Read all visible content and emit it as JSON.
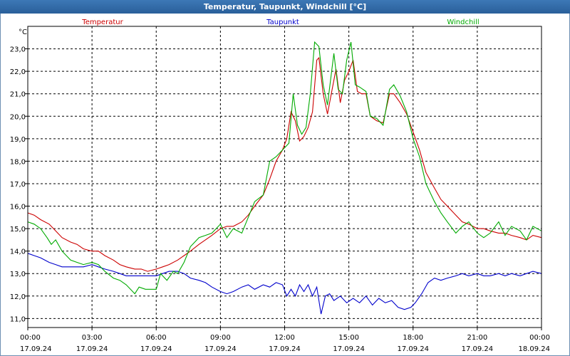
{
  "chart_data": {
    "type": "line",
    "title": "Temperatur, Taupunkt, Windchill [°C]",
    "ylabel": "°C",
    "ylim": [
      10.6,
      24.0
    ],
    "y_ticks": [
      "11,0",
      "12,0",
      "13,0",
      "14,0",
      "15,0",
      "16,0",
      "17,0",
      "18,0",
      "19,0",
      "20,0",
      "21,0",
      "22,0",
      "23,0"
    ],
    "y_tick_values": [
      11,
      12,
      13,
      14,
      15,
      16,
      17,
      18,
      19,
      20,
      21,
      22,
      23
    ],
    "xlim_hours": [
      0,
      24
    ],
    "x_ticks": [
      {
        "hour": 0,
        "time": "00:00",
        "date": "17.09.24"
      },
      {
        "hour": 3,
        "time": "03:00",
        "date": "17.09.24"
      },
      {
        "hour": 6,
        "time": "06:00",
        "date": "17.09.24"
      },
      {
        "hour": 9,
        "time": "09:00",
        "date": "17.09.24"
      },
      {
        "hour": 12,
        "time": "12:00",
        "date": "17.09.24"
      },
      {
        "hour": 15,
        "time": "15:00",
        "date": "17.09.24"
      },
      {
        "hour": 18,
        "time": "18:00",
        "date": "17.09.24"
      },
      {
        "hour": 21,
        "time": "21:00",
        "date": "17.09.24"
      },
      {
        "hour": 24,
        "time": "00:00",
        "date": "18.09.24"
      }
    ],
    "grid": true,
    "series": [
      {
        "name": "Temperatur",
        "color": "#cc0000",
        "points": [
          [
            0,
            15.7
          ],
          [
            0.3,
            15.6
          ],
          [
            0.6,
            15.4
          ],
          [
            1,
            15.2
          ],
          [
            1.3,
            14.9
          ],
          [
            1.6,
            14.6
          ],
          [
            2,
            14.4
          ],
          [
            2.3,
            14.3
          ],
          [
            2.6,
            14.1
          ],
          [
            3,
            14.0
          ],
          [
            3.3,
            14.0
          ],
          [
            3.6,
            13.8
          ],
          [
            4,
            13.6
          ],
          [
            4.3,
            13.4
          ],
          [
            4.6,
            13.3
          ],
          [
            5,
            13.2
          ],
          [
            5.3,
            13.2
          ],
          [
            5.6,
            13.1
          ],
          [
            6,
            13.2
          ],
          [
            6.3,
            13.3
          ],
          [
            6.6,
            13.4
          ],
          [
            7,
            13.6
          ],
          [
            7.3,
            13.8
          ],
          [
            7.6,
            14.0
          ],
          [
            8,
            14.3
          ],
          [
            8.3,
            14.5
          ],
          [
            8.6,
            14.7
          ],
          [
            9,
            15.0
          ],
          [
            9.3,
            15.1
          ],
          [
            9.6,
            15.1
          ],
          [
            10,
            15.3
          ],
          [
            10.3,
            15.6
          ],
          [
            10.6,
            16.0
          ],
          [
            11,
            16.5
          ],
          [
            11.3,
            17.2
          ],
          [
            11.6,
            18.0
          ],
          [
            11.9,
            18.5
          ],
          [
            12.1,
            19.0
          ],
          [
            12.3,
            20.2
          ],
          [
            12.5,
            19.8
          ],
          [
            12.7,
            18.9
          ],
          [
            12.9,
            19.1
          ],
          [
            13.1,
            19.5
          ],
          [
            13.3,
            20.2
          ],
          [
            13.5,
            22.5
          ],
          [
            13.6,
            22.6
          ],
          [
            13.8,
            21.0
          ],
          [
            14.0,
            20.1
          ],
          [
            14.2,
            21.1
          ],
          [
            14.4,
            22.1
          ],
          [
            14.6,
            20.6
          ],
          [
            14.8,
            21.6
          ],
          [
            15.0,
            22.0
          ],
          [
            15.2,
            22.5
          ],
          [
            15.4,
            21.1
          ],
          [
            15.6,
            21.0
          ],
          [
            15.8,
            21.0
          ],
          [
            16,
            20.0
          ],
          [
            16.3,
            19.8
          ],
          [
            16.6,
            19.7
          ],
          [
            16.9,
            21.0
          ],
          [
            17.1,
            21.0
          ],
          [
            17.4,
            20.6
          ],
          [
            17.7,
            20.1
          ],
          [
            18,
            19.3
          ],
          [
            18.3,
            18.5
          ],
          [
            18.6,
            17.5
          ],
          [
            19,
            16.8
          ],
          [
            19.3,
            16.3
          ],
          [
            19.6,
            16.0
          ],
          [
            20,
            15.6
          ],
          [
            20.3,
            15.3
          ],
          [
            20.6,
            15.2
          ],
          [
            21,
            15.0
          ],
          [
            21.3,
            15.0
          ],
          [
            21.6,
            14.9
          ],
          [
            22,
            14.8
          ],
          [
            22.3,
            14.8
          ],
          [
            22.6,
            14.7
          ],
          [
            23,
            14.6
          ],
          [
            23.3,
            14.5
          ],
          [
            23.6,
            14.7
          ],
          [
            24,
            14.6
          ]
        ]
      },
      {
        "name": "Taupunkt",
        "color": "#0000cc",
        "points": [
          [
            0,
            13.9
          ],
          [
            0.3,
            13.8
          ],
          [
            0.6,
            13.7
          ],
          [
            1,
            13.5
          ],
          [
            1.3,
            13.4
          ],
          [
            1.6,
            13.3
          ],
          [
            2,
            13.3
          ],
          [
            2.3,
            13.3
          ],
          [
            2.6,
            13.3
          ],
          [
            3,
            13.4
          ],
          [
            3.3,
            13.3
          ],
          [
            3.6,
            13.2
          ],
          [
            4,
            13.1
          ],
          [
            4.3,
            13.0
          ],
          [
            4.6,
            12.9
          ],
          [
            5,
            12.9
          ],
          [
            5.3,
            12.9
          ],
          [
            5.6,
            12.9
          ],
          [
            6,
            12.9
          ],
          [
            6.3,
            13.0
          ],
          [
            6.6,
            13.1
          ],
          [
            7,
            13.1
          ],
          [
            7.3,
            13.0
          ],
          [
            7.6,
            12.8
          ],
          [
            8,
            12.7
          ],
          [
            8.3,
            12.6
          ],
          [
            8.6,
            12.4
          ],
          [
            9,
            12.2
          ],
          [
            9.3,
            12.1
          ],
          [
            9.6,
            12.2
          ],
          [
            10,
            12.4
          ],
          [
            10.3,
            12.5
          ],
          [
            10.6,
            12.3
          ],
          [
            11,
            12.5
          ],
          [
            11.3,
            12.4
          ],
          [
            11.6,
            12.6
          ],
          [
            11.9,
            12.5
          ],
          [
            12.1,
            12.0
          ],
          [
            12.3,
            12.3
          ],
          [
            12.5,
            12.0
          ],
          [
            12.7,
            12.5
          ],
          [
            12.9,
            12.2
          ],
          [
            13.1,
            12.5
          ],
          [
            13.3,
            12.0
          ],
          [
            13.5,
            12.4
          ],
          [
            13.7,
            11.2
          ],
          [
            13.9,
            12.0
          ],
          [
            14.1,
            12.1
          ],
          [
            14.3,
            11.8
          ],
          [
            14.6,
            12.0
          ],
          [
            14.9,
            11.7
          ],
          [
            15.2,
            11.9
          ],
          [
            15.5,
            11.7
          ],
          [
            15.8,
            12.0
          ],
          [
            16.1,
            11.6
          ],
          [
            16.4,
            11.9
          ],
          [
            16.7,
            11.7
          ],
          [
            17,
            11.8
          ],
          [
            17.3,
            11.5
          ],
          [
            17.6,
            11.4
          ],
          [
            17.9,
            11.5
          ],
          [
            18.1,
            11.7
          ],
          [
            18.4,
            12.1
          ],
          [
            18.7,
            12.6
          ],
          [
            19,
            12.8
          ],
          [
            19.3,
            12.7
          ],
          [
            19.6,
            12.8
          ],
          [
            20,
            12.9
          ],
          [
            20.3,
            13.0
          ],
          [
            20.6,
            12.9
          ],
          [
            21,
            13.0
          ],
          [
            21.3,
            12.9
          ],
          [
            21.6,
            12.9
          ],
          [
            22,
            13.0
          ],
          [
            22.3,
            12.9
          ],
          [
            22.6,
            13.0
          ],
          [
            23,
            12.9
          ],
          [
            23.3,
            13.0
          ],
          [
            23.6,
            13.1
          ],
          [
            24,
            13.0
          ]
        ]
      },
      {
        "name": "Windchill",
        "color": "#00aa00",
        "points": [
          [
            0,
            15.3
          ],
          [
            0.3,
            15.2
          ],
          [
            0.6,
            15.0
          ],
          [
            0.9,
            14.6
          ],
          [
            1.1,
            14.3
          ],
          [
            1.3,
            14.5
          ],
          [
            1.6,
            14.0
          ],
          [
            2,
            13.6
          ],
          [
            2.3,
            13.5
          ],
          [
            2.6,
            13.4
          ],
          [
            3,
            13.5
          ],
          [
            3.3,
            13.4
          ],
          [
            3.6,
            13.1
          ],
          [
            4,
            12.8
          ],
          [
            4.3,
            12.7
          ],
          [
            4.6,
            12.5
          ],
          [
            5,
            12.1
          ],
          [
            5.2,
            12.4
          ],
          [
            5.5,
            12.3
          ],
          [
            5.8,
            12.3
          ],
          [
            6,
            12.3
          ],
          [
            6.2,
            13.0
          ],
          [
            6.5,
            12.7
          ],
          [
            6.8,
            13.1
          ],
          [
            7,
            13.0
          ],
          [
            7.3,
            13.5
          ],
          [
            7.6,
            14.2
          ],
          [
            8,
            14.6
          ],
          [
            8.3,
            14.7
          ],
          [
            8.6,
            14.8
          ],
          [
            9,
            15.2
          ],
          [
            9.3,
            14.6
          ],
          [
            9.6,
            15.0
          ],
          [
            10,
            14.8
          ],
          [
            10.3,
            15.5
          ],
          [
            10.6,
            16.2
          ],
          [
            11,
            16.5
          ],
          [
            11.3,
            18.0
          ],
          [
            11.6,
            18.2
          ],
          [
            12,
            18.6
          ],
          [
            12.2,
            18.8
          ],
          [
            12.4,
            21.0
          ],
          [
            12.6,
            19.6
          ],
          [
            12.8,
            19.2
          ],
          [
            13,
            19.5
          ],
          [
            13.2,
            21.0
          ],
          [
            13.4,
            23.3
          ],
          [
            13.6,
            23.1
          ],
          [
            13.8,
            21.4
          ],
          [
            14.0,
            20.5
          ],
          [
            14.3,
            22.8
          ],
          [
            14.5,
            21.2
          ],
          [
            14.7,
            21.0
          ],
          [
            14.9,
            22.5
          ],
          [
            15.1,
            23.3
          ],
          [
            15.3,
            21.4
          ],
          [
            15.5,
            21.3
          ],
          [
            15.8,
            21.1
          ],
          [
            16,
            20.0
          ],
          [
            16.3,
            19.9
          ],
          [
            16.6,
            19.6
          ],
          [
            16.9,
            21.2
          ],
          [
            17.1,
            21.4
          ],
          [
            17.4,
            20.9
          ],
          [
            17.7,
            20.2
          ],
          [
            18,
            19.0
          ],
          [
            18.3,
            18.2
          ],
          [
            18.6,
            17.0
          ],
          [
            19,
            16.2
          ],
          [
            19.3,
            15.7
          ],
          [
            19.6,
            15.3
          ],
          [
            20,
            14.8
          ],
          [
            20.3,
            15.1
          ],
          [
            20.6,
            15.3
          ],
          [
            21,
            14.8
          ],
          [
            21.3,
            14.6
          ],
          [
            21.6,
            14.8
          ],
          [
            22,
            15.3
          ],
          [
            22.3,
            14.7
          ],
          [
            22.6,
            15.1
          ],
          [
            23,
            14.9
          ],
          [
            23.3,
            14.5
          ],
          [
            23.6,
            15.1
          ],
          [
            24,
            14.9
          ]
        ]
      }
    ]
  }
}
